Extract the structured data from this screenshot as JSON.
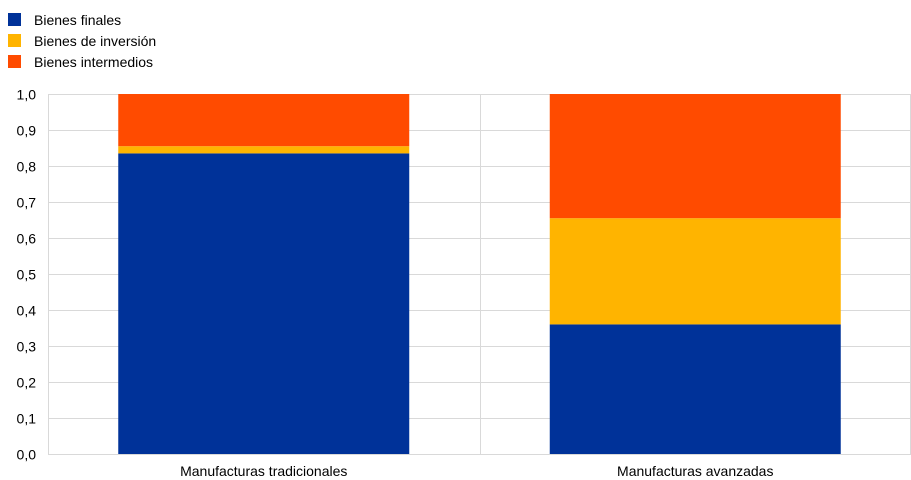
{
  "chart_data": {
    "type": "bar",
    "stacked": true,
    "categories": [
      "Manufacturas tradicionales",
      "Manufacturas avanzadas"
    ],
    "series": [
      {
        "name": "Bienes finales",
        "color": "#003299",
        "values": [
          0.835,
          0.36
        ]
      },
      {
        "name": "Bienes de inversión",
        "color": "#FFB400",
        "values": [
          0.02,
          0.295
        ]
      },
      {
        "name": "Bienes intermedios",
        "color": "#FF4B00",
        "values": [
          0.145,
          0.345
        ]
      }
    ],
    "ylim": [
      0,
      1.0
    ],
    "yticks": [
      "0,0",
      "0,1",
      "0,2",
      "0,3",
      "0,4",
      "0,5",
      "0,6",
      "0,7",
      "0,8",
      "0,9",
      "1,0"
    ],
    "grid": true,
    "legend_position": "top-left",
    "title": "",
    "xlabel": "",
    "ylabel": ""
  }
}
